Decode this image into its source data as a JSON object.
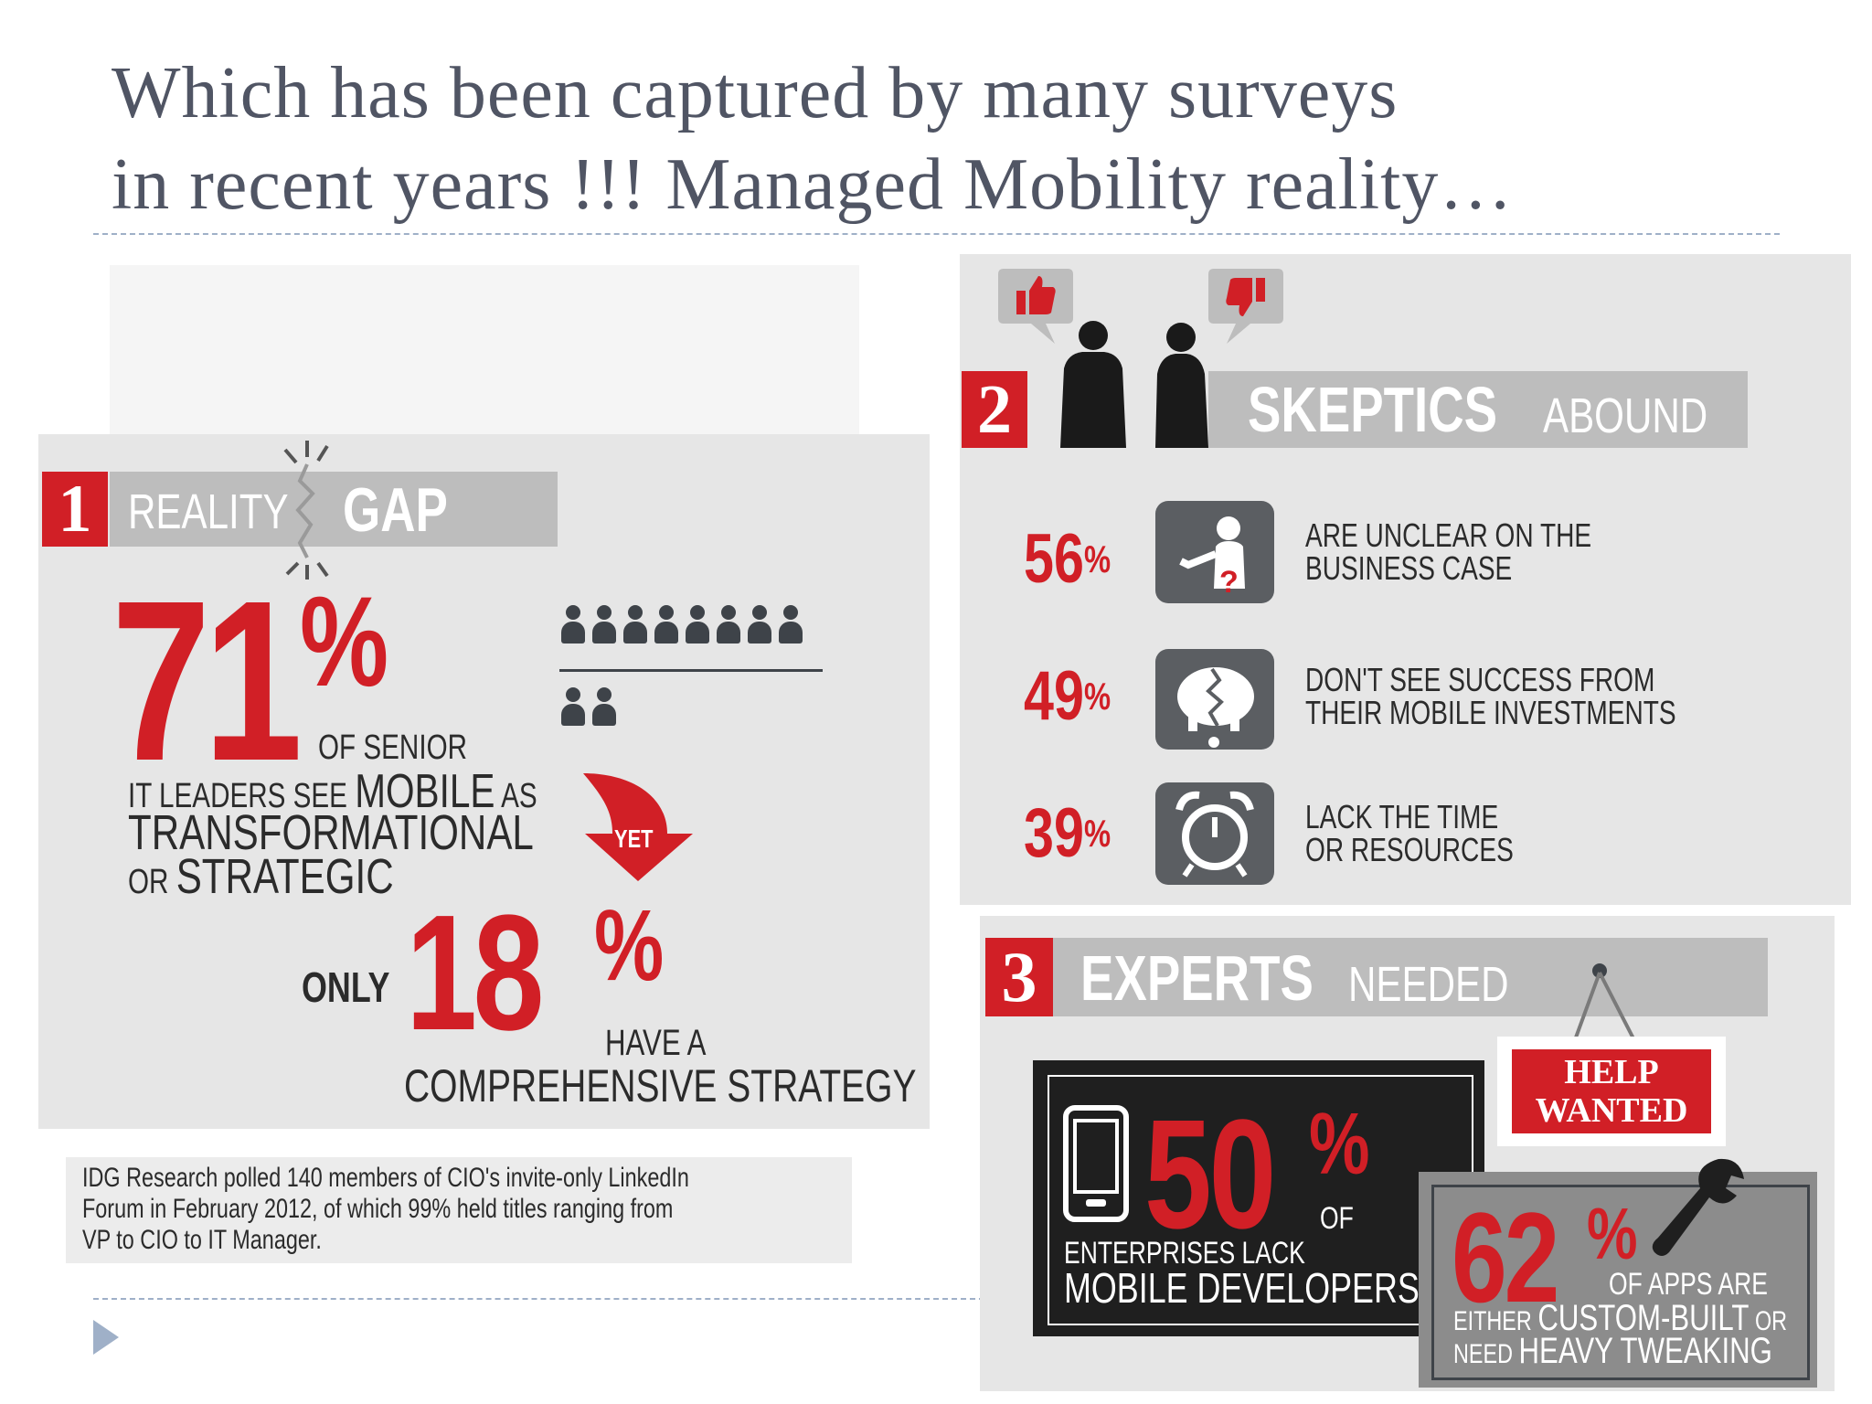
{
  "slide": {
    "title_line1": "Which has been captured by many surveys",
    "title_line2": "in recent years !!! Managed Mobility reality…"
  },
  "panel1": {
    "number": "1",
    "heading_a": "REALITY",
    "heading_b": "GAP",
    "stat_main": "71",
    "stat_main_pct": "%",
    "text_a": "OF SENIOR",
    "text_b1": "IT LEADERS SEE ",
    "text_b2": "MOBILE",
    "text_b3": " AS",
    "text_c": "TRANSFORMATIONAL",
    "text_d1": "OR ",
    "text_d2": "STRATEGIC",
    "arrow_label": "YET",
    "only_label": "ONLY",
    "stat_second": "18",
    "stat_second_pct": "%",
    "text_e": "HAVE A",
    "text_f": "COMPREHENSIVE STRATEGY",
    "people_top_count": 7,
    "people_bottom_count": 2
  },
  "note": {
    "line1": "IDG Research polled 140 members of CIO's invite-only LinkedIn",
    "line2": "Forum in February 2012, of which 99% held titles ranging from",
    "line3": "VP to CIO to IT Manager."
  },
  "panel2": {
    "number": "2",
    "heading_a": "SKEPTICS",
    "heading_b": "ABOUND",
    "items": [
      {
        "pct": "56",
        "sym": "%",
        "line1": "ARE UNCLEAR ON THE",
        "line2": "BUSINESS CASE",
        "icon": "presenter-question-icon"
      },
      {
        "pct": "49",
        "sym": "%",
        "line1": "DON'T SEE SUCCESS FROM",
        "line2": "THEIR MOBILE INVESTMENTS",
        "icon": "piggy-bank-icon"
      },
      {
        "pct": "39",
        "sym": "%",
        "line1": "LACK THE TIME",
        "line2": "OR RESOURCES",
        "icon": "alarm-clock-icon"
      }
    ]
  },
  "panel3": {
    "number": "3",
    "heading_a": "EXPERTS",
    "heading_b": "NEEDED",
    "sign_line1": "HELP",
    "sign_line2": "WANTED",
    "stat_a": "50",
    "stat_a_pct": "%",
    "stat_a_of": "OF",
    "stat_a_line1": "ENTERPRISES LACK",
    "stat_a_line2": "MOBILE DEVELOPERS",
    "stat_b": "62",
    "stat_b_pct": "%",
    "stat_b_line1": "OF APPS ARE",
    "stat_b_line2a": "EITHER ",
    "stat_b_line2b": "CUSTOM-BUILT",
    "stat_b_line2c": " OR",
    "stat_b_line3a": "NEED ",
    "stat_b_line3b": "HEAVY TWEAKING"
  },
  "colors": {
    "red": "#d11f26",
    "gray_panel": "#e6e6e6",
    "banner_gray": "#bdbdbd",
    "dark": "#2b2b2b"
  }
}
